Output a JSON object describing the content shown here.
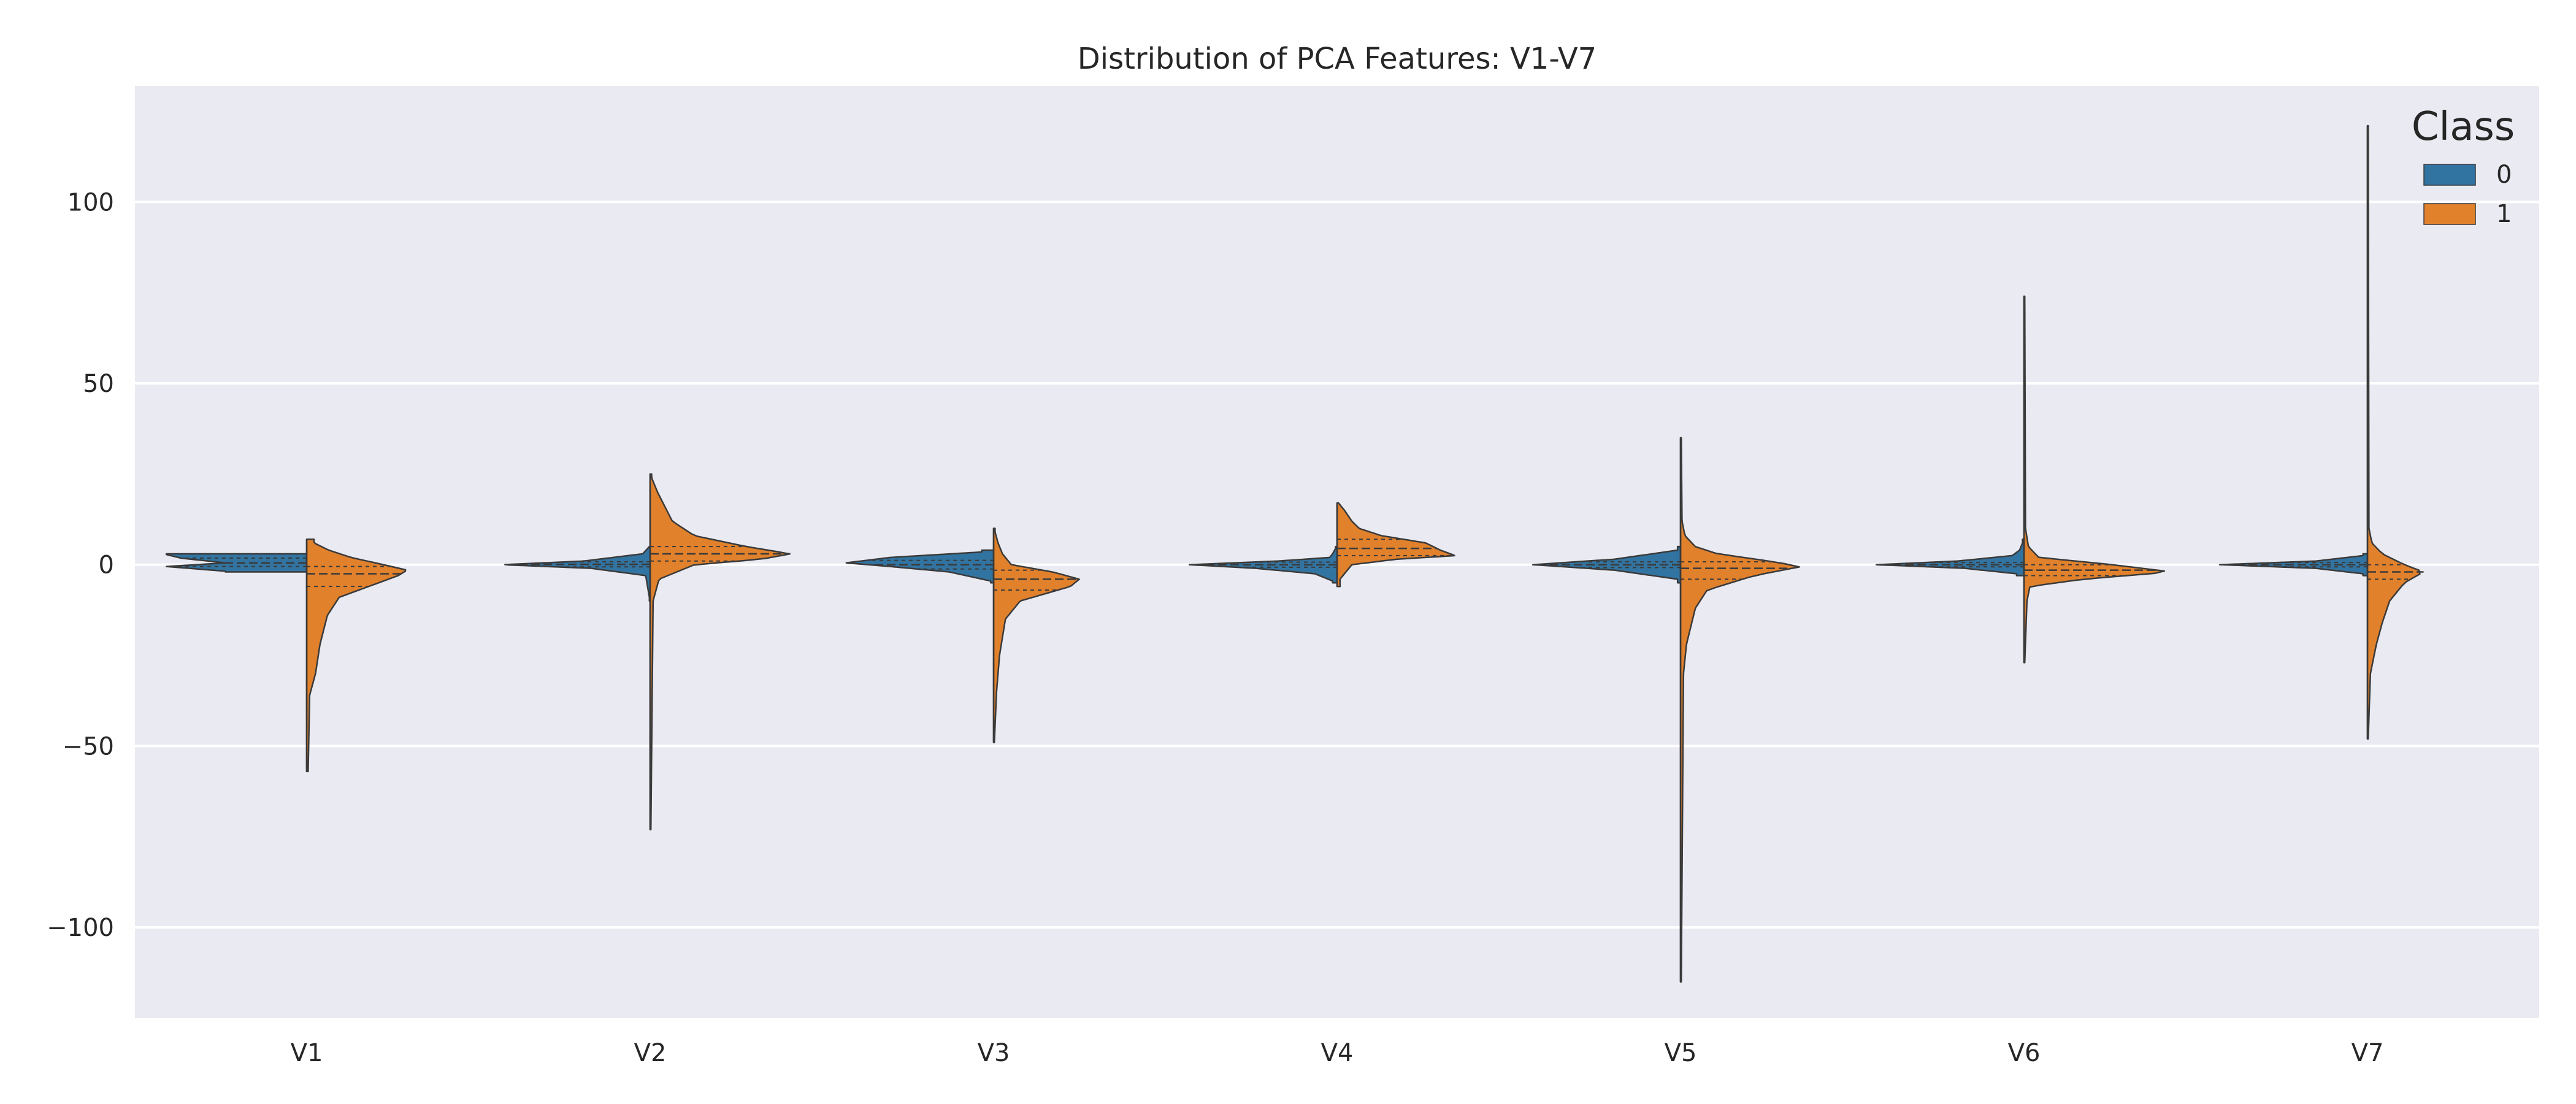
{
  "chart_data": {
    "type": "violin",
    "title": "Distribution of PCA Features: V1-V7",
    "xlabel": "",
    "ylabel": "",
    "categories": [
      "V1",
      "V2",
      "V3",
      "V4",
      "V5",
      "V6",
      "V7"
    ],
    "ylim": [
      -125,
      132
    ],
    "yticks": [
      -100,
      -50,
      0,
      50,
      100
    ],
    "grid": true,
    "split": true,
    "inner": "quartile",
    "legend": {
      "title": "Class",
      "placement": "top-right",
      "entries": [
        {
          "label": "0",
          "color": "#3274a1"
        },
        {
          "label": "1",
          "color": "#e1812c"
        }
      ]
    },
    "colors": {
      "background": "#eaeaf2",
      "grid": "#ffffff",
      "edge": "#3a3a3a"
    },
    "series": [
      {
        "name": "0",
        "color": "#3274a1",
        "violins": [
          {
            "min": -2,
            "max": 3,
            "quartiles": [
              -0.5,
              0.5,
              1.8
            ],
            "profile": [
              [
                -1.8,
                0.55
              ],
              [
                -0.5,
                0.95
              ],
              [
                0.5,
                0.55
              ],
              [
                1.8,
                0.85
              ],
              [
                2.8,
                0.95
              ]
            ]
          },
          {
            "min": -10,
            "max": 5,
            "quartiles": [
              -0.6,
              0.1,
              0.8
            ],
            "profile": [
              [
                -9,
                0.005
              ],
              [
                -3,
                0.03
              ],
              [
                -1,
                0.4
              ],
              [
                0,
                1.0
              ],
              [
                1,
                0.45
              ],
              [
                3,
                0.05
              ],
              [
                5,
                0.005
              ]
            ]
          },
          {
            "min": -5,
            "max": 4,
            "quartiles": [
              -1.2,
              0,
              1.2
            ],
            "profile": [
              [
                -4.5,
                0.02
              ],
              [
                -2,
                0.3
              ],
              [
                -0.5,
                0.7
              ],
              [
                0.5,
                1.0
              ],
              [
                2,
                0.7
              ],
              [
                3.5,
                0.08
              ]
            ]
          },
          {
            "min": -5,
            "max": 5,
            "quartiles": [
              -0.7,
              0,
              0.7
            ],
            "profile": [
              [
                -4.5,
                0.03
              ],
              [
                -2.5,
                0.15
              ],
              [
                -1,
                0.55
              ],
              [
                0,
                1.0
              ],
              [
                1,
                0.4
              ],
              [
                2,
                0.05
              ],
              [
                3,
                0.03
              ],
              [
                4.5,
                0.01
              ]
            ]
          },
          {
            "min": -5,
            "max": 5,
            "quartiles": [
              -0.8,
              0,
              0.8
            ],
            "profile": [
              [
                -4,
                0.02
              ],
              [
                -1.5,
                0.45
              ],
              [
                0,
                1.0
              ],
              [
                1.5,
                0.45
              ],
              [
                4,
                0.02
              ]
            ]
          },
          {
            "min": -3,
            "max": 7,
            "quartiles": [
              -0.6,
              0,
              0.6
            ],
            "profile": [
              [
                -2.5,
                0.05
              ],
              [
                -1,
                0.4
              ],
              [
                0,
                1.0
              ],
              [
                1,
                0.45
              ],
              [
                2.5,
                0.08
              ],
              [
                4,
                0.03
              ],
              [
                6,
                0.01
              ]
            ]
          },
          {
            "min": -3,
            "max": 3,
            "quartiles": [
              -0.6,
              0,
              0.6
            ],
            "profile": [
              [
                -2.5,
                0.03
              ],
              [
                -1,
                0.35
              ],
              [
                0,
                1.0
              ],
              [
                1,
                0.35
              ],
              [
                2.5,
                0.03
              ]
            ]
          }
        ]
      },
      {
        "name": "1",
        "color": "#e1812c",
        "violins": [
          {
            "min": -57,
            "max": 7,
            "quartiles": [
              -6,
              -2.5,
              -0.5
            ],
            "profile": [
              [
                -57,
                0.01
              ],
              [
                -36,
                0.02
              ],
              [
                -30,
                0.06
              ],
              [
                -22,
                0.09
              ],
              [
                -14,
                0.14
              ],
              [
                -9,
                0.22
              ],
              [
                -6,
                0.42
              ],
              [
                -3,
                0.62
              ],
              [
                -1.5,
                0.68
              ],
              [
                0,
                0.52
              ],
              [
                2,
                0.3
              ],
              [
                4,
                0.15
              ],
              [
                6,
                0.05
              ]
            ]
          },
          {
            "min": -73,
            "max": 25,
            "quartiles": [
              1,
              3,
              5
            ],
            "profile": [
              [
                -73,
                0.005
              ],
              [
                -10,
                0.02
              ],
              [
                -4,
                0.06
              ],
              [
                0,
                0.3
              ],
              [
                1.5,
                0.75
              ],
              [
                3,
                0.95
              ],
              [
                5,
                0.65
              ],
              [
                8,
                0.3
              ],
              [
                12,
                0.15
              ],
              [
                16,
                0.1
              ],
              [
                20,
                0.05
              ],
              [
                24,
                0.01
              ]
            ]
          },
          {
            "min": -49,
            "max": 10,
            "quartiles": [
              -7,
              -4,
              -1.5
            ],
            "profile": [
              [
                -49,
                0.005
              ],
              [
                -35,
                0.02
              ],
              [
                -25,
                0.04
              ],
              [
                -15,
                0.08
              ],
              [
                -10,
                0.18
              ],
              [
                -6,
                0.52
              ],
              [
                -4,
                0.58
              ],
              [
                -2,
                0.4
              ],
              [
                0,
                0.12
              ],
              [
                3,
                0.06
              ],
              [
                6,
                0.03
              ],
              [
                9,
                0.01
              ]
            ]
          },
          {
            "min": -6,
            "max": 17,
            "quartiles": [
              2.5,
              4.5,
              7
            ],
            "profile": [
              [
                -4,
                0.02
              ],
              [
                0,
                0.1
              ],
              [
                1.5,
                0.4
              ],
              [
                2.5,
                0.8
              ],
              [
                4,
                0.7
              ],
              [
                6,
                0.6
              ],
              [
                8,
                0.3
              ],
              [
                10,
                0.15
              ],
              [
                12,
                0.1
              ],
              [
                15,
                0.05
              ],
              [
                17,
                0.01
              ]
            ]
          },
          {
            "min": -115,
            "max": 35,
            "quartiles": [
              -4,
              -1,
              0.8
            ],
            "profile": [
              [
                -115,
                0.005
              ],
              [
                -30,
                0.02
              ],
              [
                -22,
                0.04
              ],
              [
                -12,
                0.1
              ],
              [
                -7,
                0.18
              ],
              [
                -3,
                0.5
              ],
              [
                -0.5,
                0.82
              ],
              [
                1,
                0.6
              ],
              [
                3,
                0.25
              ],
              [
                5,
                0.1
              ],
              [
                8,
                0.03
              ],
              [
                12,
                0.01
              ],
              [
                35,
                0.005
              ]
            ]
          },
          {
            "min": -27,
            "max": 74,
            "quartiles": [
              -3,
              -1.5,
              0
            ],
            "profile": [
              [
                -27,
                0.005
              ],
              [
                -10,
                0.02
              ],
              [
                -6,
                0.04
              ],
              [
                -4,
                0.4
              ],
              [
                -2,
                1.0
              ],
              [
                0,
                0.6
              ],
              [
                2,
                0.1
              ],
              [
                5,
                0.03
              ],
              [
                10,
                0.01
              ],
              [
                74,
                0.005
              ]
            ]
          },
          {
            "min": -48,
            "max": 121,
            "quartiles": [
              -4,
              -2,
              0
            ],
            "profile": [
              [
                -48,
                0.005
              ],
              [
                -30,
                0.02
              ],
              [
                -22,
                0.06
              ],
              [
                -16,
                0.1
              ],
              [
                -10,
                0.15
              ],
              [
                -5,
                0.25
              ],
              [
                -2,
                0.38
              ],
              [
                0,
                0.25
              ],
              [
                3,
                0.1
              ],
              [
                6,
                0.03
              ],
              [
                10,
                0.01
              ],
              [
                121,
                0.005
              ]
            ]
          }
        ]
      }
    ]
  }
}
